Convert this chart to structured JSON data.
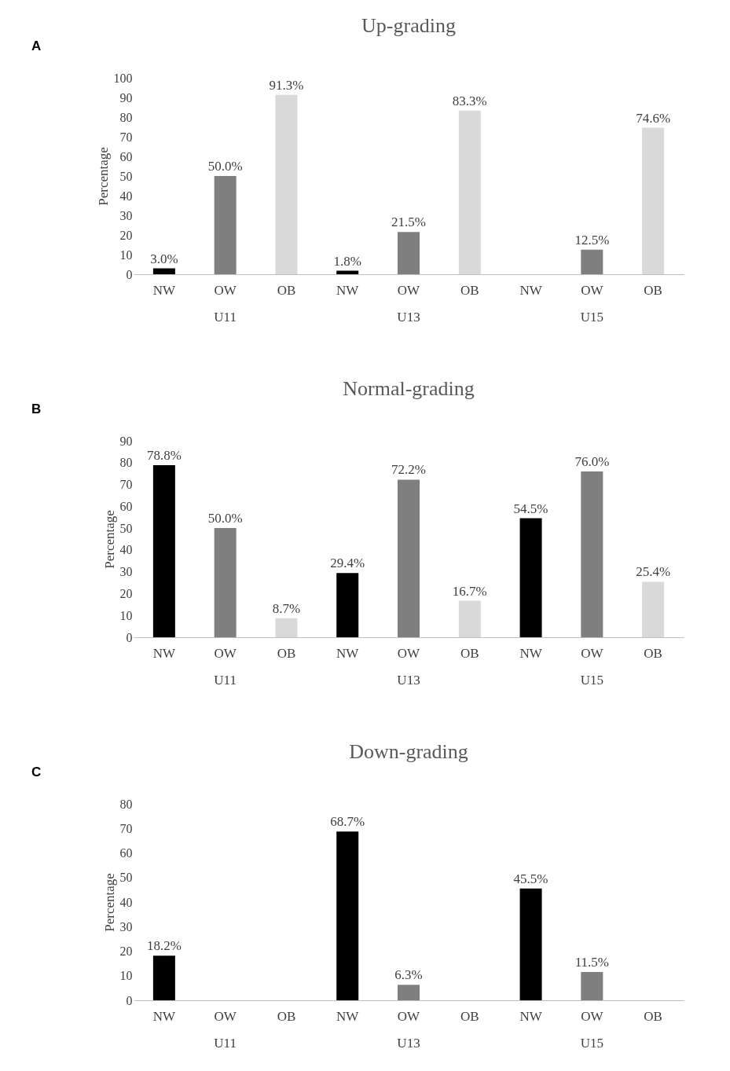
{
  "chart_data": [
    {
      "type": "bar",
      "title": "Up-grading",
      "ylabel": "Percentage",
      "annotations": [
        "A",
        "U11",
        "U13",
        "U15"
      ],
      "categories": [
        "NW",
        "OW",
        "OB",
        "NW",
        "OW",
        "OB",
        "NW",
        "OW",
        "OB"
      ],
      "values": [
        3.0,
        50.0,
        91.3,
        1.8,
        21.5,
        83.3,
        null,
        12.5,
        74.6
      ],
      "value_labels": [
        "3.0%",
        "50.0%",
        "91.3%",
        "1.8%",
        "21.5%",
        "83.3%",
        null,
        "12.5%",
        "74.6%"
      ],
      "colors": [
        "#000000",
        "#7f7f7f",
        "#d9d9d9",
        "#000000",
        "#7f7f7f",
        "#d9d9d9",
        "#000000",
        "#7f7f7f",
        "#d9d9d9"
      ],
      "ylim": [
        0,
        100
      ],
      "yticks": [
        0,
        10,
        20,
        30,
        40,
        50,
        60,
        70,
        80,
        90,
        100
      ],
      "grid": false
    },
    {
      "type": "bar",
      "title": "Normal-grading",
      "ylabel": "Percentage",
      "annotations": [
        "B",
        "U11",
        "U13",
        "U15"
      ],
      "categories": [
        "NW",
        "OW",
        "OB",
        "NW",
        "OW",
        "OB",
        "NW",
        "OW",
        "OB"
      ],
      "values": [
        78.8,
        50.0,
        8.7,
        29.4,
        72.2,
        16.7,
        54.5,
        76.0,
        25.4
      ],
      "value_labels": [
        "78.8%",
        "50.0%",
        "8.7%",
        "29.4%",
        "72.2%",
        "16.7%",
        "54.5%",
        "76.0%",
        "25.4%"
      ],
      "colors": [
        "#000000",
        "#7f7f7f",
        "#d9d9d9",
        "#000000",
        "#7f7f7f",
        "#d9d9d9",
        "#000000",
        "#7f7f7f",
        "#d9d9d9"
      ],
      "ylim": [
        0,
        90
      ],
      "yticks": [
        0,
        10,
        20,
        30,
        40,
        50,
        60,
        70,
        80,
        90
      ],
      "grid": false
    },
    {
      "type": "bar",
      "title": "Down-grading",
      "ylabel": "Percentage",
      "annotations": [
        "C",
        "U11",
        "U13",
        "U15"
      ],
      "categories": [
        "NW",
        "OW",
        "OB",
        "NW",
        "OW",
        "OB",
        "NW",
        "OW",
        "OB"
      ],
      "values": [
        18.2,
        null,
        null,
        68.7,
        6.3,
        null,
        45.5,
        11.5,
        null
      ],
      "value_labels": [
        "18.2%",
        null,
        null,
        "68.7%",
        "6.3%",
        null,
        "45.5%",
        "11.5%",
        null
      ],
      "colors": [
        "#000000",
        "#7f7f7f",
        "#d9d9d9",
        "#000000",
        "#7f7f7f",
        "#d9d9d9",
        "#000000",
        "#7f7f7f",
        "#d9d9d9"
      ],
      "ylim": [
        0,
        80
      ],
      "yticks": [
        0,
        10,
        20,
        30,
        40,
        50,
        60,
        70,
        80
      ],
      "grid": false
    }
  ]
}
